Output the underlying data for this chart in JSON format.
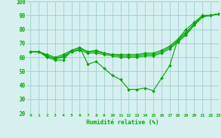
{
  "xlabel": "Humidité relative (%)",
  "background_color": "#d6efef",
  "line_color": "#00aa00",
  "grid_color": "#99cccc",
  "xlim": [
    -0.5,
    23
  ],
  "ylim": [
    20,
    100
  ],
  "yticks": [
    20,
    30,
    40,
    50,
    60,
    70,
    80,
    90,
    100
  ],
  "xticks": [
    0,
    1,
    2,
    3,
    4,
    5,
    6,
    7,
    8,
    9,
    10,
    11,
    12,
    13,
    14,
    15,
    16,
    17,
    18,
    19,
    20,
    21,
    22,
    23
  ],
  "series": [
    [
      64,
      64,
      60,
      58,
      58,
      65,
      67,
      55,
      57,
      52,
      47,
      44,
      37,
      37,
      38,
      36,
      45,
      54,
      73,
      80,
      85,
      90,
      90,
      91
    ],
    [
      64,
      64,
      61,
      59,
      60,
      64,
      65,
      63,
      63,
      62,
      61,
      60,
      60,
      60,
      61,
      61,
      63,
      66,
      71,
      76,
      83,
      89,
      90,
      91
    ],
    [
      64,
      64,
      61,
      59,
      61,
      64,
      66,
      64,
      64,
      63,
      62,
      61,
      61,
      61,
      62,
      62,
      64,
      67,
      72,
      77,
      83,
      89,
      90,
      91
    ],
    [
      64,
      64,
      62,
      60,
      62,
      65,
      67,
      64,
      65,
      63,
      62,
      62,
      62,
      62,
      63,
      63,
      65,
      68,
      73,
      78,
      84,
      89,
      90,
      91
    ]
  ]
}
